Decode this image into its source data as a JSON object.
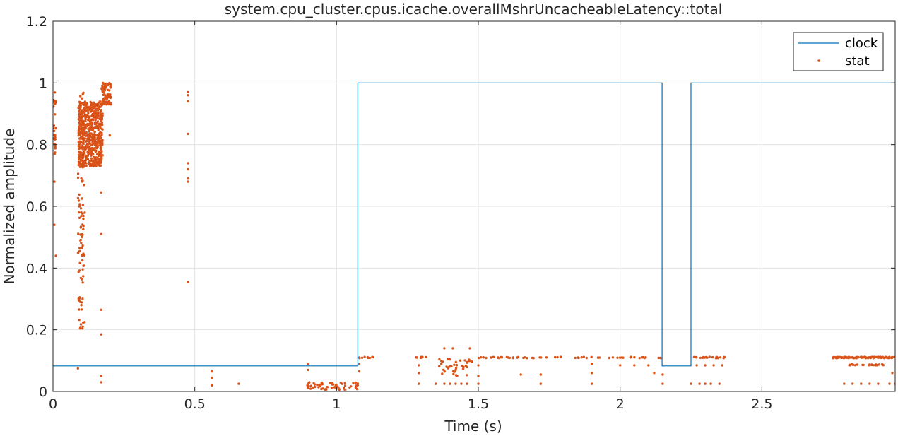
{
  "chart_data": {
    "type": "line",
    "title": "system.cpu_cluster.cpus.icache.overallMshrUncacheableLatency::total",
    "xlabel": "Time (s)",
    "ylabel": "Normalized amplitude",
    "xlim": [
      0,
      2.97
    ],
    "ylim": [
      0,
      1.2
    ],
    "x_ticks": [
      0,
      0.5,
      1,
      1.5,
      2,
      2.5
    ],
    "x_tick_labels": [
      "0",
      "0.5",
      "1",
      "1.5",
      "2",
      "2.5"
    ],
    "y_ticks": [
      0,
      0.2,
      0.4,
      0.6,
      0.8,
      1,
      1.2
    ],
    "y_tick_labels": [
      "0",
      "0.2",
      "0.4",
      "0.6",
      "0.8",
      "1",
      "1.2"
    ],
    "grid": true,
    "legend_position": "top-right",
    "series": [
      {
        "name": "clock",
        "style": "line",
        "color": "#0072BD",
        "x": [
          0,
          1.075,
          1.075,
          2.148,
          2.148,
          2.25,
          2.25,
          2.97
        ],
        "y": [
          0.083,
          0.083,
          1,
          1,
          0.083,
          0.083,
          1,
          1
        ]
      },
      {
        "name": "stat",
        "style": "points",
        "color": "#D95319",
        "clusters": [
          {
            "x": [
              0.0,
              0.01
            ],
            "y": [
              0.75,
              0.97
            ],
            "density": 25
          },
          {
            "x": [
              0.088,
              0.112
            ],
            "y": [
              0.2,
              0.97
            ],
            "density": 120
          },
          {
            "x": [
              0.09,
              0.175
            ],
            "y": [
              0.73,
              0.94
            ],
            "density": 600
          },
          {
            "x": [
              0.17,
              0.205
            ],
            "y": [
              0.93,
              1.0
            ],
            "density": 90
          },
          {
            "x": [
              0.895,
              1.08
            ],
            "y": [
              0.005,
              0.03
            ],
            "density": 60
          },
          {
            "x": [
              1.08,
              1.13
            ],
            "y": [
              0.108,
              0.112
            ],
            "density": 8
          },
          {
            "x": [
              1.27,
              1.32
            ],
            "y": [
              0.108,
              0.112
            ],
            "density": 8
          },
          {
            "x": [
              1.36,
              1.48
            ],
            "y": [
              0.05,
              0.112
            ],
            "density": 40
          },
          {
            "x": [
              1.5,
              2.15
            ],
            "y": [
              0.108,
              0.112
            ],
            "density": 60
          },
          {
            "x": [
              2.25,
              2.37
            ],
            "y": [
              0.108,
              0.112
            ],
            "density": 22
          },
          {
            "x": [
              2.75,
              2.97
            ],
            "y": [
              0.108,
              0.112
            ],
            "density": 90
          },
          {
            "x": [
              2.8,
              2.93
            ],
            "y": [
              0.085,
              0.088
            ],
            "density": 25
          }
        ],
        "points": [
          [
            0.005,
            0.54
          ],
          [
            0.01,
            0.44
          ],
          [
            0.005,
            0.68
          ],
          [
            0.088,
            0.075
          ],
          [
            0.105,
            0.21
          ],
          [
            0.1,
            0.28
          ],
          [
            0.17,
            0.265
          ],
          [
            0.17,
            0.185
          ],
          [
            0.17,
            0.51
          ],
          [
            0.17,
            0.645
          ],
          [
            0.17,
            0.05
          ],
          [
            0.17,
            0.03
          ],
          [
            0.2,
            0.83
          ],
          [
            0.476,
            0.97
          ],
          [
            0.476,
            0.96
          ],
          [
            0.476,
            0.94
          ],
          [
            0.476,
            0.835
          ],
          [
            0.476,
            0.74
          ],
          [
            0.476,
            0.72
          ],
          [
            0.476,
            0.69
          ],
          [
            0.476,
            0.68
          ],
          [
            0.476,
            0.355
          ],
          [
            0.56,
            0.065
          ],
          [
            0.56,
            0.045
          ],
          [
            0.56,
            0.02
          ],
          [
            0.655,
            0.025
          ],
          [
            0.9,
            0.09
          ],
          [
            0.9,
            0.07
          ],
          [
            0.9,
            0.025
          ],
          [
            1.08,
            0.11
          ],
          [
            1.08,
            0.09
          ],
          [
            1.08,
            0.065
          ],
          [
            1.29,
            0.085
          ],
          [
            1.29,
            0.06
          ],
          [
            1.29,
            0.025
          ],
          [
            1.35,
            0.025
          ],
          [
            1.38,
            0.025
          ],
          [
            1.4,
            0.025
          ],
          [
            1.42,
            0.025
          ],
          [
            1.44,
            0.025
          ],
          [
            1.46,
            0.025
          ],
          [
            1.38,
            0.14
          ],
          [
            1.41,
            0.14
          ],
          [
            1.47,
            0.14
          ],
          [
            1.5,
            0.025
          ],
          [
            1.5,
            0.05
          ],
          [
            1.5,
            0.085
          ],
          [
            1.65,
            0.055
          ],
          [
            1.72,
            0.055
          ],
          [
            1.72,
            0.025
          ],
          [
            1.9,
            0.09
          ],
          [
            1.9,
            0.06
          ],
          [
            1.9,
            0.025
          ],
          [
            2.0,
            0.085
          ],
          [
            2.05,
            0.085
          ],
          [
            2.1,
            0.085
          ],
          [
            2.12,
            0.06
          ],
          [
            2.15,
            0.055
          ],
          [
            2.15,
            0.025
          ],
          [
            2.25,
            0.025
          ],
          [
            2.28,
            0.025
          ],
          [
            2.3,
            0.025
          ],
          [
            2.32,
            0.025
          ],
          [
            2.35,
            0.025
          ],
          [
            2.27,
            0.085
          ],
          [
            2.3,
            0.085
          ],
          [
            2.33,
            0.085
          ],
          [
            2.36,
            0.085
          ],
          [
            2.79,
            0.025
          ],
          [
            2.82,
            0.025
          ],
          [
            2.85,
            0.025
          ],
          [
            2.88,
            0.025
          ],
          [
            2.91,
            0.025
          ],
          [
            2.95,
            0.025
          ],
          [
            2.97,
            0.025
          ],
          [
            2.96,
            0.06
          ]
        ]
      }
    ]
  }
}
